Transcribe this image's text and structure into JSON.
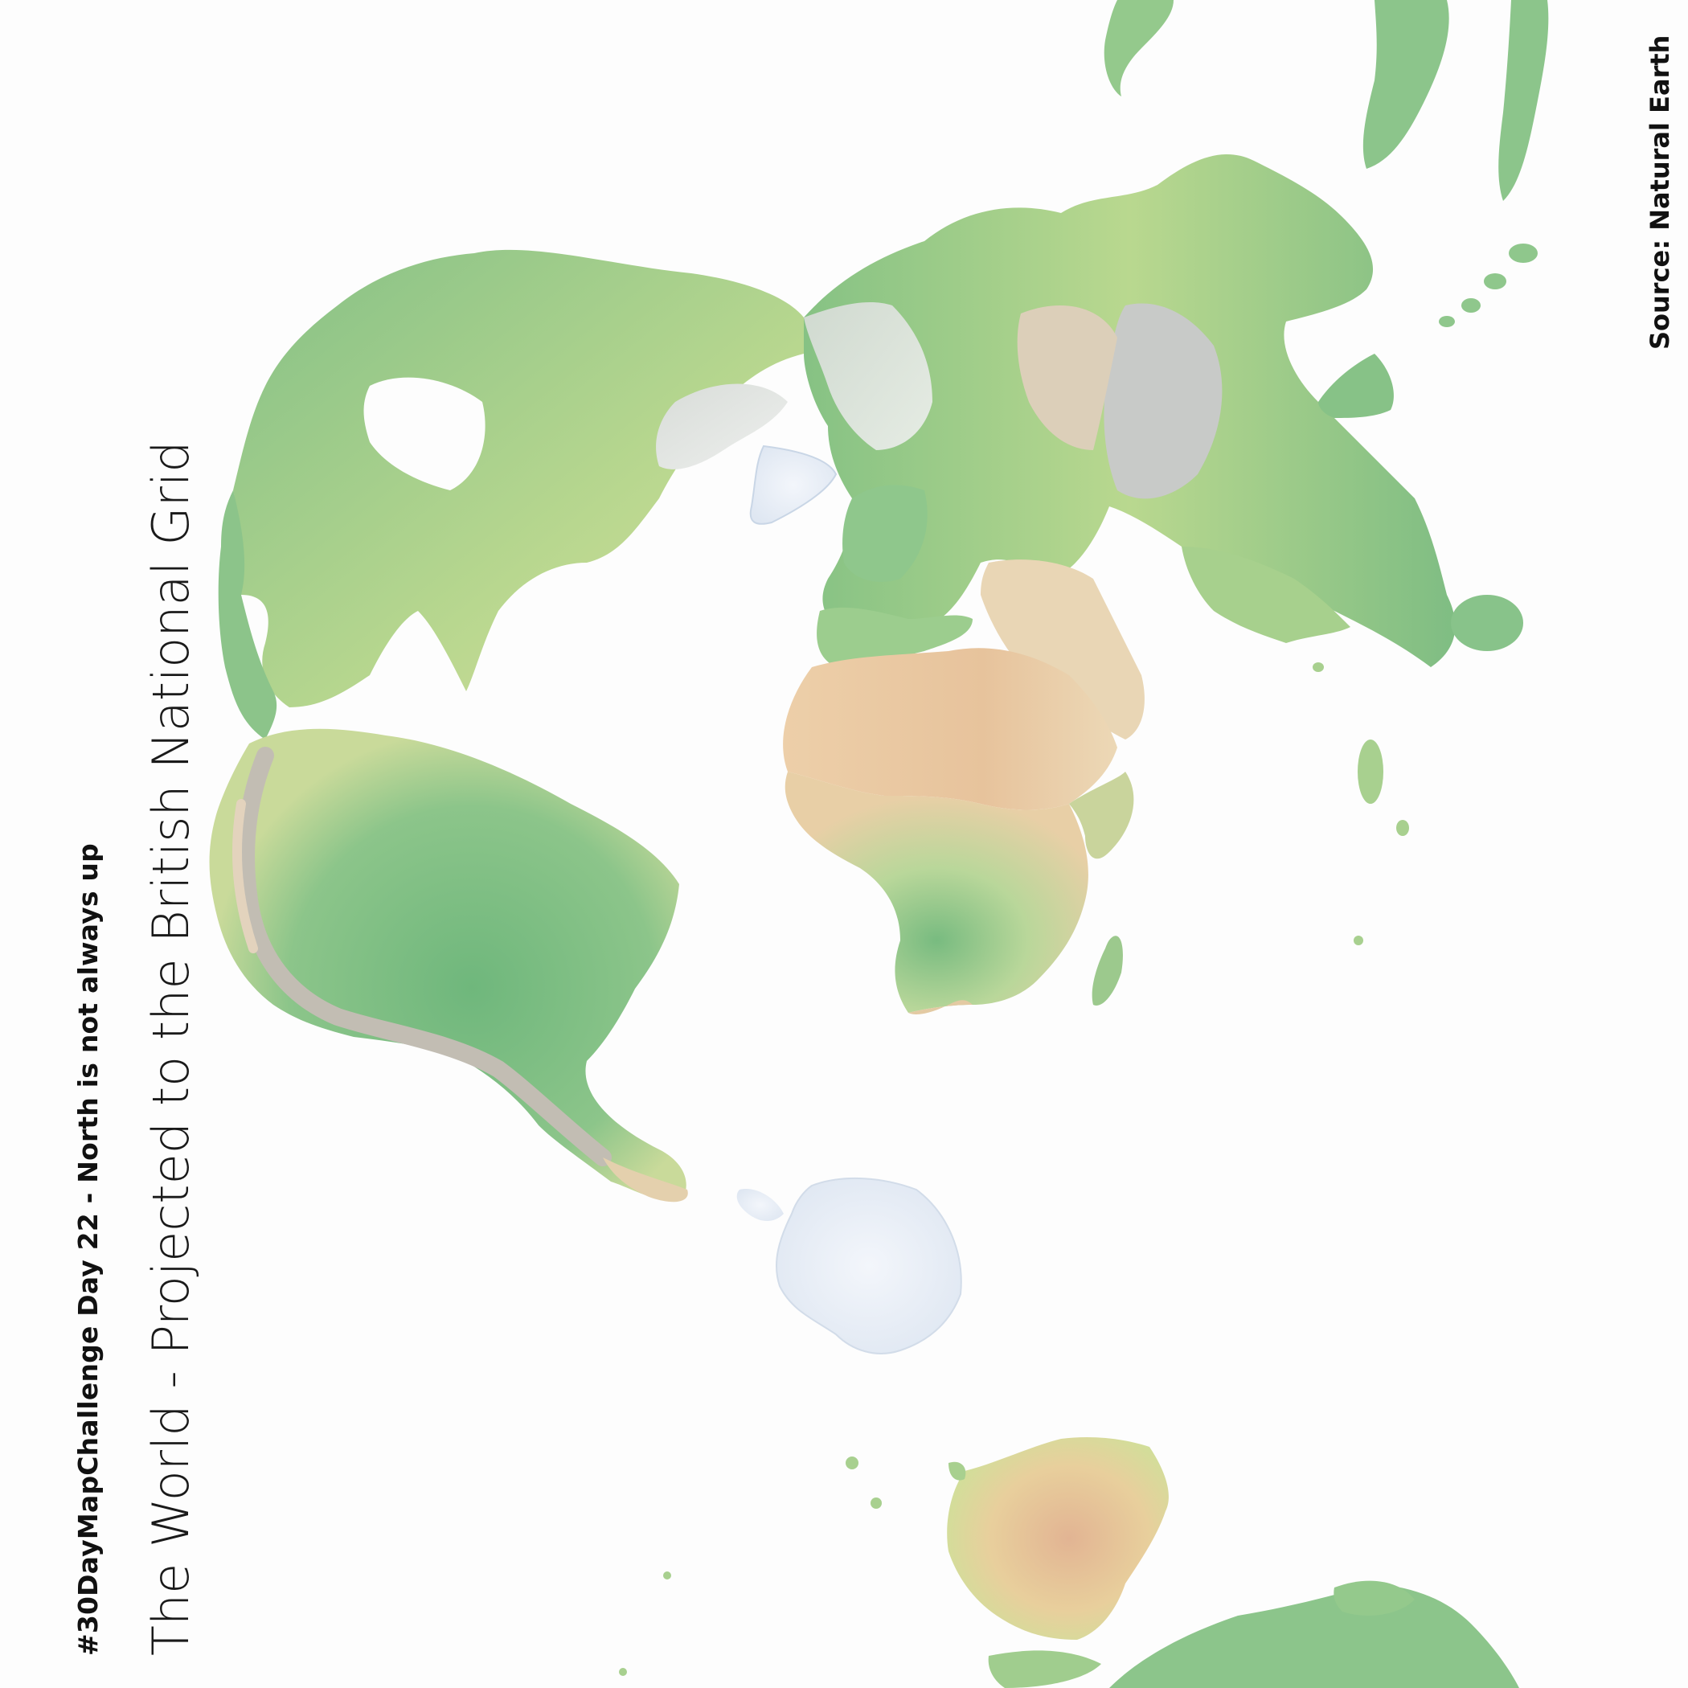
{
  "header": {
    "subtitle": "#30DayMapChallenge Day 22 - North is not always up",
    "title": "The World - Projected to the British National Grid"
  },
  "footer": {
    "source": "Source: Natural Earth"
  },
  "colors": {
    "background": "#fdfdfd",
    "lowland_green": "#7fbf85",
    "dry_yellow": "#dfe39a",
    "desert_tan": "#e8c7a0",
    "mountain_grey": "#b8b8b8",
    "ice": "#e6eef7"
  }
}
